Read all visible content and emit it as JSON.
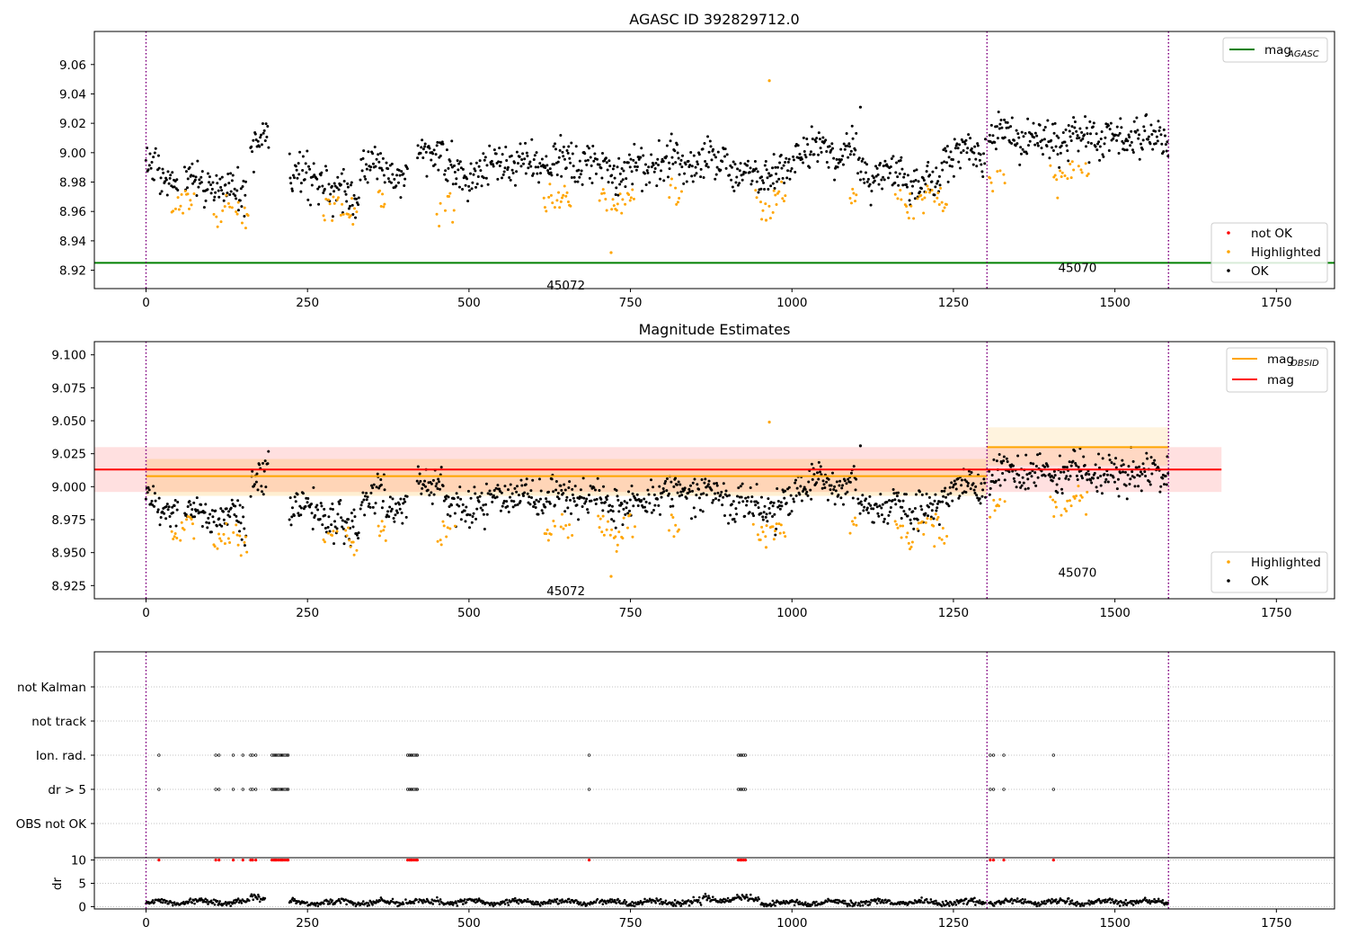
{
  "chart_data": [
    {
      "type": "scatter",
      "title": "AGASC ID 392829712.0",
      "xlim": [
        -80,
        1840
      ],
      "ylim": [
        8.9075,
        9.0825
      ],
      "xticks": [
        0,
        250,
        500,
        750,
        1000,
        1250,
        1500,
        1750
      ],
      "yticks": [
        8.92,
        8.94,
        8.96,
        8.98,
        9.0,
        9.02,
        9.04,
        9.06
      ],
      "ytick_labels": [
        "8.92",
        "8.94",
        "8.96",
        "8.98",
        "9.00",
        "9.02",
        "9.04",
        "9.06"
      ],
      "obs_boundaries": [
        0,
        1302,
        1583
      ],
      "obs_labels": [
        {
          "text": "45072",
          "x": 650,
          "y": 8.91
        },
        {
          "text": "45070",
          "x": 1442,
          "y": 8.922
        }
      ],
      "lines": [
        {
          "name": "mag_AGASC",
          "color": "#008000",
          "y": 8.925,
          "x0": -80,
          "x1": 1840
        }
      ],
      "legends": [
        {
          "position": "top-right",
          "entries": [
            {
              "kind": "line",
              "color": "#008000",
              "label": "mag",
              "sub": "AGASC"
            }
          ]
        },
        {
          "position": "bottom-right",
          "entries": [
            {
              "kind": "dot",
              "color": "#ff0000",
              "label": "not OK"
            },
            {
              "kind": "dot",
              "color": "#ffa500",
              "label": "Highlighted"
            },
            {
              "kind": "dot",
              "color": "#000000",
              "label": "OK"
            }
          ]
        }
      ],
      "outliers": [
        {
          "x": 965,
          "y": 9.049,
          "color": "#ffa500"
        },
        {
          "x": 720,
          "y": 8.932,
          "color": "#ffa500"
        },
        {
          "x": 1106,
          "y": 9.031,
          "color": "#000000"
        },
        {
          "x": 960,
          "y": 8.954,
          "color": "#ffa500"
        }
      ],
      "series": [
        {
          "name": "OK",
          "color": "#000000",
          "segments": [
            [
              0,
              16,
              8.99
            ],
            [
              18,
              50,
              8.982
            ],
            [
              60,
              110,
              8.98
            ],
            [
              112,
              155,
              8.975
            ],
            [
              162,
              190,
              9.005
            ],
            [
              222,
              280,
              8.983
            ],
            [
              282,
              330,
              8.972
            ],
            [
              332,
              370,
              8.99
            ],
            [
              372,
              405,
              8.985
            ],
            [
              420,
              460,
              9.002
            ],
            [
              462,
              530,
              8.985
            ],
            [
              532,
              700,
              8.993
            ],
            [
              702,
              780,
              8.988
            ],
            [
              782,
              900,
              8.995
            ],
            [
              902,
              1000,
              8.985
            ],
            [
              1002,
              1100,
              9.002
            ],
            [
              1102,
              1180,
              8.985
            ],
            [
              1182,
              1230,
              8.982
            ],
            [
              1232,
              1300,
              9.0
            ],
            [
              1305,
              1583,
              9.01
            ]
          ]
        },
        {
          "name": "Highlighted",
          "color": "#ffa500",
          "segments": [
            [
              40,
              75,
              8.966
            ],
            [
              105,
              160,
              8.96
            ],
            [
              275,
              330,
              8.962
            ],
            [
              360,
              375,
              8.967
            ],
            [
              450,
              480,
              8.962
            ],
            [
              610,
              660,
              8.967
            ],
            [
              700,
              760,
              8.966
            ],
            [
              810,
              830,
              8.968
            ],
            [
              940,
              990,
              8.966
            ],
            [
              1090,
              1100,
              8.967
            ],
            [
              1160,
              1240,
              8.968
            ],
            [
              1305,
              1330,
              8.986
            ],
            [
              1400,
              1460,
              8.987
            ]
          ]
        }
      ]
    },
    {
      "type": "scatter",
      "title": "Magnitude Estimates",
      "xlim": [
        -80,
        1840
      ],
      "ylim": [
        8.915,
        9.11
      ],
      "xticks": [
        0,
        250,
        500,
        750,
        1000,
        1250,
        1500,
        1750
      ],
      "yticks": [
        8.925,
        8.95,
        8.975,
        9.0,
        9.025,
        9.05,
        9.075,
        9.1
      ],
      "ytick_labels": [
        "8.925",
        "8.950",
        "8.975",
        "9.000",
        "9.025",
        "9.050",
        "9.075",
        "9.100"
      ],
      "obs_boundaries": [
        0,
        1302,
        1583
      ],
      "obs_labels": [
        {
          "text": "45072",
          "x": 650,
          "y": 8.921
        },
        {
          "text": "45070",
          "x": 1442,
          "y": 8.935
        }
      ],
      "bands": [
        {
          "color": "#ff0000",
          "opacity": 0.12,
          "y0": 8.996,
          "y1": 9.03,
          "x0": -80,
          "x1": 1665
        },
        {
          "color": "#ffa500",
          "opacity": 0.18,
          "y0": 8.993,
          "y1": 9.021,
          "x0": 0,
          "x1": 1302
        },
        {
          "color": "#ffa500",
          "opacity": 0.13,
          "y0": 9.016,
          "y1": 9.045,
          "x0": 1302,
          "x1": 1583
        }
      ],
      "lines": [
        {
          "name": "mag_OBSID",
          "color": "#ffa500",
          "y": 9.008,
          "x0": 0,
          "x1": 1302
        },
        {
          "name": "mag_OBSID",
          "color": "#ffa500",
          "y": 9.03,
          "x0": 1302,
          "x1": 1583
        },
        {
          "name": "mag",
          "color": "#ff0000",
          "y": 9.013,
          "x0": -80,
          "x1": 1665
        }
      ],
      "legends": [
        {
          "position": "top-right",
          "entries": [
            {
              "kind": "line",
              "color": "#ffa500",
              "label": "mag",
              "sub": "OBSID"
            },
            {
              "kind": "line",
              "color": "#ff0000",
              "label": "mag",
              "sub": ""
            }
          ]
        },
        {
          "position": "bottom-right",
          "entries": [
            {
              "kind": "dot",
              "color": "#ffa500",
              "label": "Highlighted"
            },
            {
              "kind": "dot",
              "color": "#000000",
              "label": "OK"
            }
          ]
        }
      ],
      "outliers": [
        {
          "x": 965,
          "y": 9.049,
          "color": "#ffa500"
        },
        {
          "x": 720,
          "y": 8.932,
          "color": "#ffa500"
        },
        {
          "x": 1106,
          "y": 9.031,
          "color": "#000000"
        },
        {
          "x": 960,
          "y": 8.954,
          "color": "#ffa500"
        }
      ],
      "series": [
        {
          "name": "OK",
          "color": "#000000",
          "segments": [
            [
              0,
              16,
              8.99
            ],
            [
              18,
              50,
              8.982
            ],
            [
              60,
              110,
              8.98
            ],
            [
              112,
              155,
              8.975
            ],
            [
              162,
              190,
              9.005
            ],
            [
              222,
              280,
              8.983
            ],
            [
              282,
              330,
              8.972
            ],
            [
              332,
              370,
              8.99
            ],
            [
              372,
              405,
              8.985
            ],
            [
              420,
              460,
              9.002
            ],
            [
              462,
              530,
              8.985
            ],
            [
              532,
              700,
              8.993
            ],
            [
              702,
              780,
              8.988
            ],
            [
              782,
              900,
              8.995
            ],
            [
              902,
              1000,
              8.985
            ],
            [
              1002,
              1100,
              9.002
            ],
            [
              1102,
              1180,
              8.985
            ],
            [
              1182,
              1230,
              8.982
            ],
            [
              1232,
              1300,
              9.0
            ],
            [
              1305,
              1583,
              9.01
            ]
          ]
        },
        {
          "name": "Highlighted",
          "color": "#ffa500",
          "segments": [
            [
              40,
              75,
              8.966
            ],
            [
              105,
              160,
              8.96
            ],
            [
              275,
              330,
              8.962
            ],
            [
              360,
              375,
              8.967
            ],
            [
              450,
              480,
              8.962
            ],
            [
              610,
              660,
              8.967
            ],
            [
              700,
              760,
              8.966
            ],
            [
              810,
              830,
              8.968
            ],
            [
              940,
              990,
              8.966
            ],
            [
              1090,
              1100,
              8.967
            ],
            [
              1160,
              1240,
              8.968
            ],
            [
              1305,
              1330,
              8.986
            ],
            [
              1400,
              1460,
              8.987
            ]
          ]
        }
      ]
    },
    {
      "type": "scatter",
      "title": "",
      "xlim": [
        -80,
        1840
      ],
      "categories": [
        "not Kalman",
        "not track",
        "Ion. rad.",
        "dr > 5",
        "OBS not OK"
      ],
      "obs_boundaries": [
        0,
        1302,
        1583
      ],
      "flags": {
        "dr > 5": [
          20,
          108,
          113,
          135,
          150,
          162,
          165,
          170,
          195,
          198,
          200,
          202,
          205,
          208,
          210,
          212,
          215,
          218,
          220,
          405,
          408,
          410,
          412,
          415,
          418,
          420,
          686,
          917,
          920,
          922,
          925,
          928,
          1307,
          1312,
          1328,
          1405
        ],
        "Ion. rad.": [
          20,
          108,
          113,
          135,
          150,
          162,
          165,
          170,
          195,
          198,
          200,
          202,
          205,
          208,
          210,
          212,
          215,
          218,
          220,
          405,
          408,
          410,
          412,
          415,
          418,
          420,
          686,
          917,
          920,
          922,
          925,
          928,
          1307,
          1312,
          1328,
          1405
        ]
      },
      "dr": {
        "ylabel": "dr",
        "yticks": [
          0,
          5,
          10
        ],
        "ylim": [
          -0.5,
          10.5
        ],
        "clipped_value": 10,
        "clipped_x": [
          20,
          108,
          113,
          135,
          150,
          162,
          165,
          170,
          195,
          198,
          200,
          202,
          205,
          208,
          210,
          212,
          215,
          218,
          220,
          405,
          408,
          410,
          412,
          415,
          418,
          420,
          686,
          917,
          920,
          922,
          925,
          928,
          1307,
          1312,
          1328,
          1405
        ],
        "segments": [
          [
            0,
            16,
            1.0
          ],
          [
            18,
            160,
            1.0
          ],
          [
            162,
            185,
            1.8
          ],
          [
            222,
            400,
            0.9
          ],
          [
            402,
            420,
            1.2
          ],
          [
            422,
            700,
            1.0
          ],
          [
            702,
            860,
            0.9
          ],
          [
            862,
            950,
            1.6
          ],
          [
            952,
            1100,
            0.8
          ],
          [
            1102,
            1300,
            0.9
          ],
          [
            1305,
            1583,
            1.0
          ]
        ]
      }
    }
  ]
}
